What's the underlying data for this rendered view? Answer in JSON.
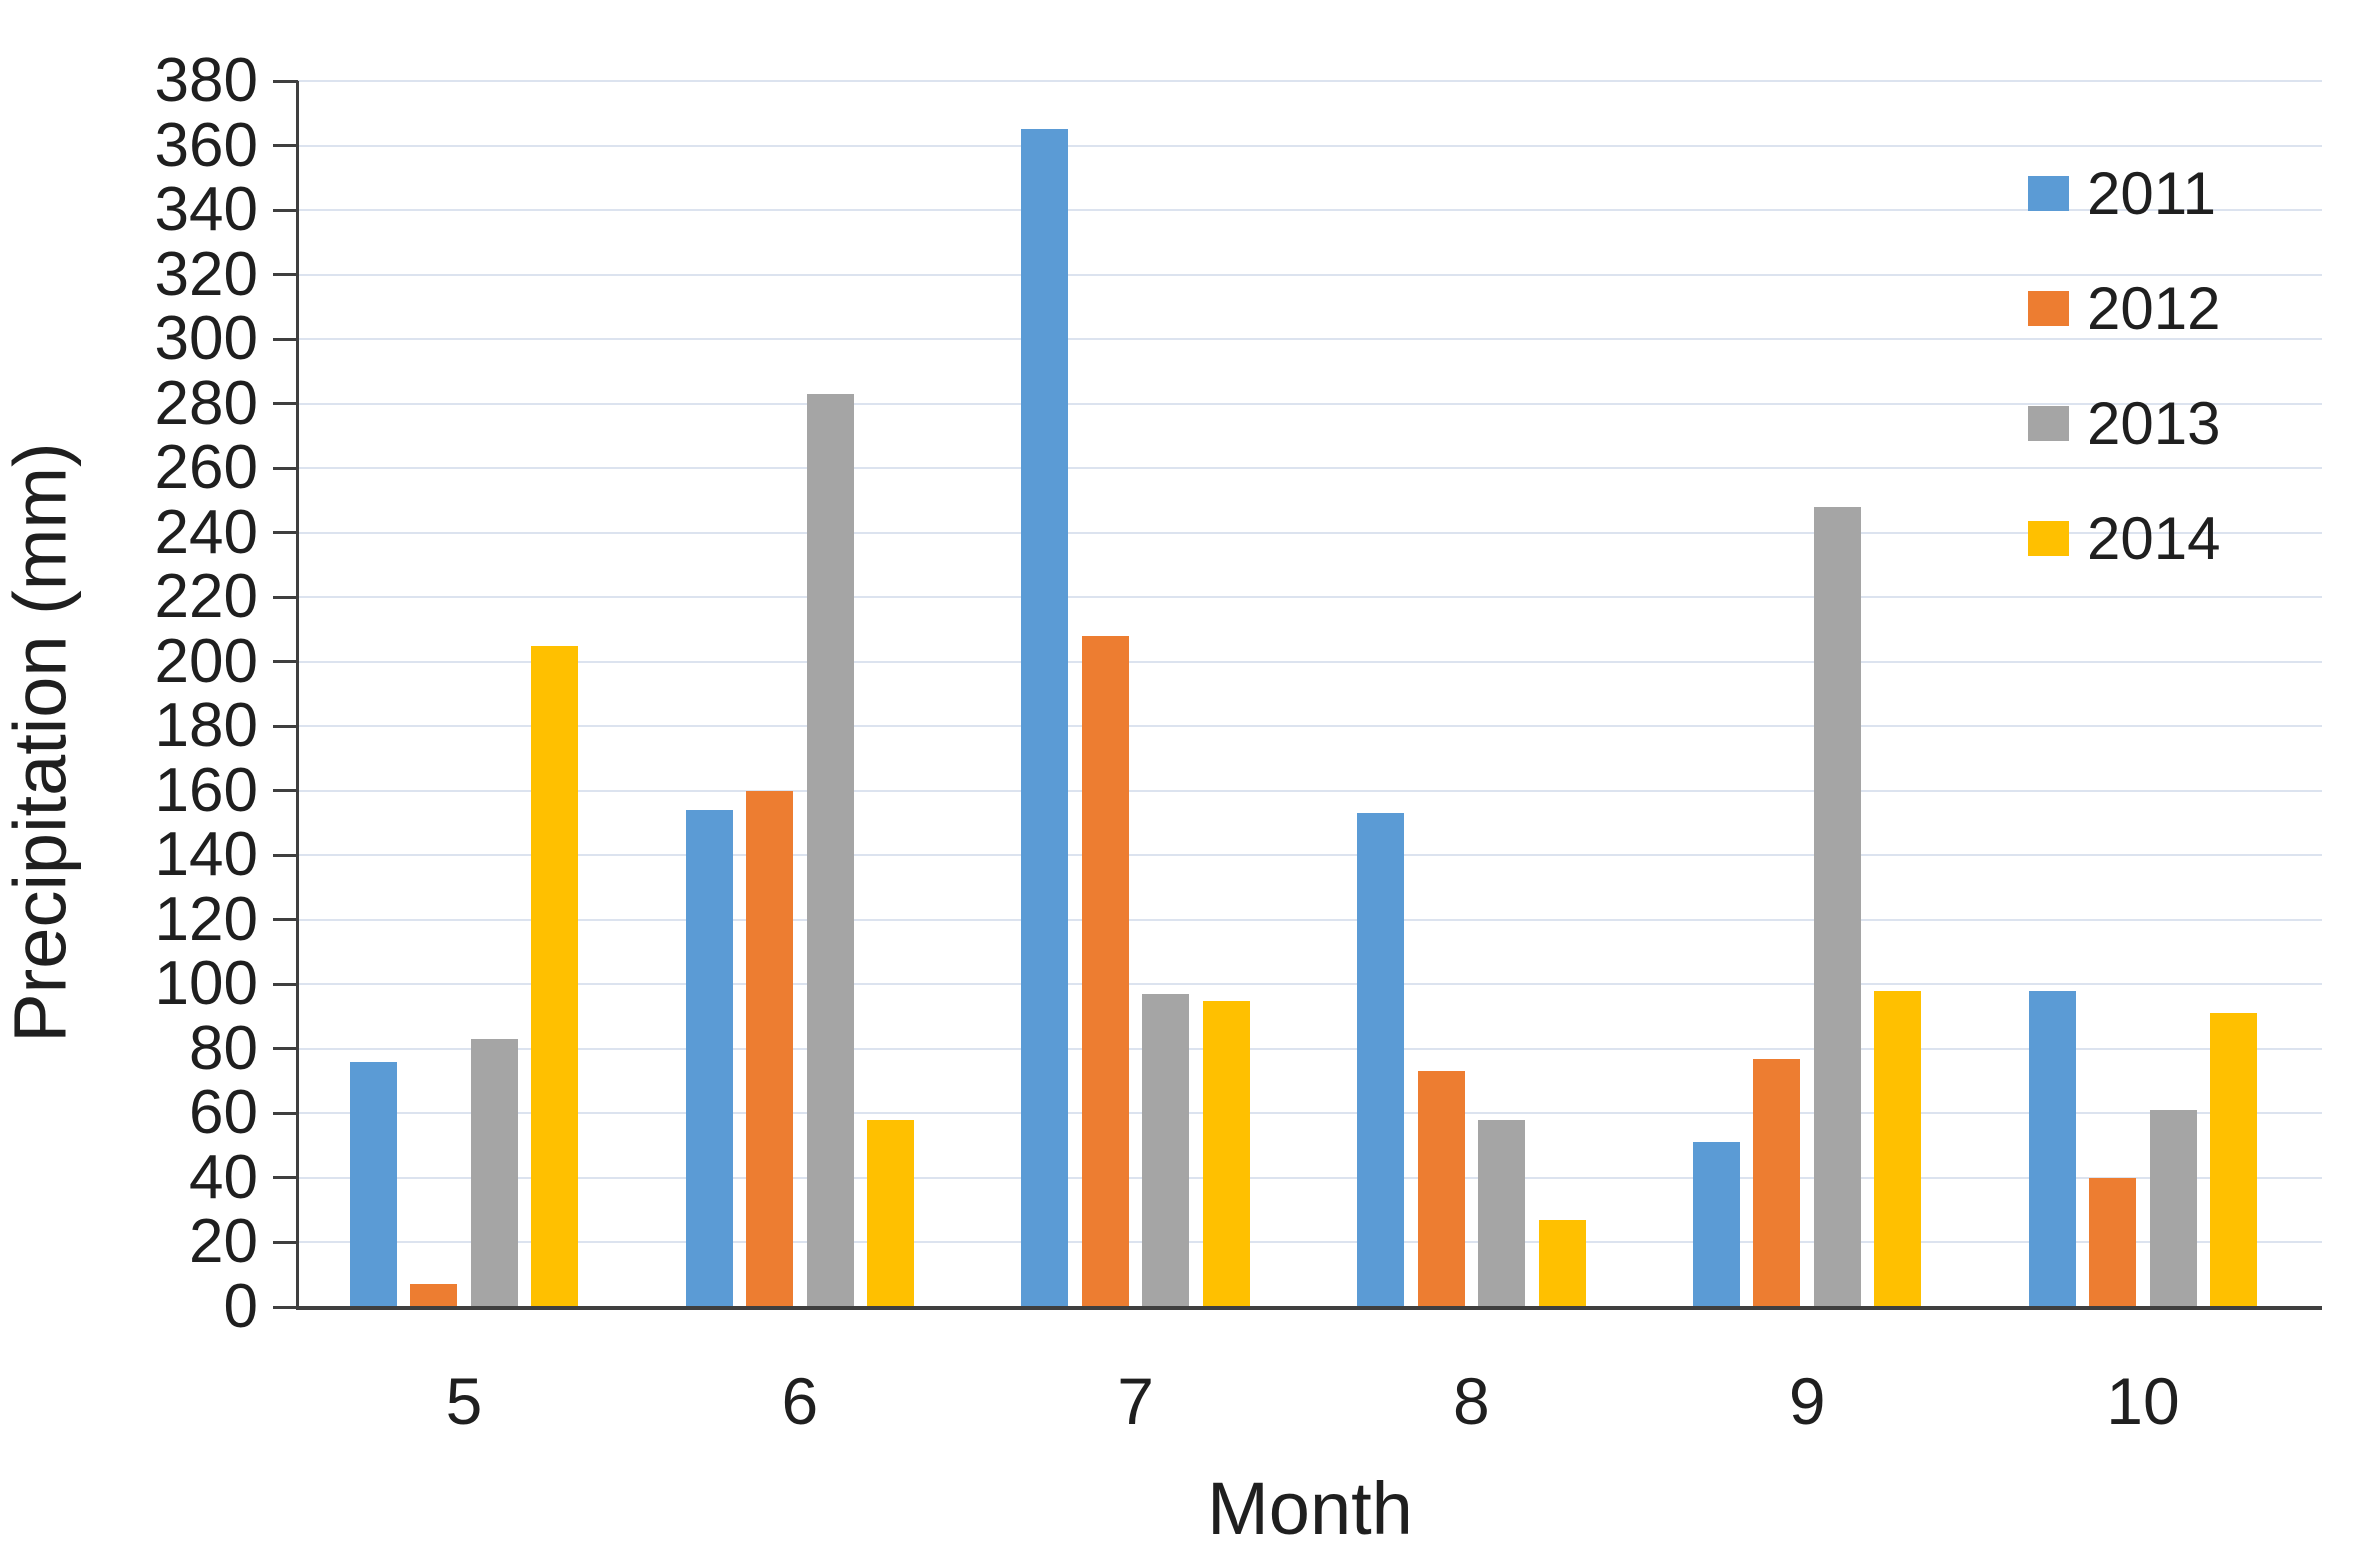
{
  "chart_data": {
    "type": "bar",
    "title": "",
    "categories": [
      "5",
      "6",
      "7",
      "8",
      "9",
      "10"
    ],
    "series": [
      {
        "name": "2011",
        "color": "#5B9BD5",
        "values": [
          76,
          154,
          365,
          153,
          51,
          98
        ]
      },
      {
        "name": "2012",
        "color": "#ED7D31",
        "values": [
          7,
          160,
          208,
          73,
          77,
          40
        ]
      },
      {
        "name": "2013",
        "color": "#A5A5A5",
        "values": [
          83,
          283,
          97,
          58,
          248,
          61
        ]
      },
      {
        "name": "2014",
        "color": "#FFC000",
        "values": [
          205,
          58,
          95,
          27,
          98,
          91
        ]
      }
    ],
    "xlabel": "Month",
    "ylabel": "Precipitation (mm)",
    "ylim": [
      0,
      380
    ],
    "ytick_step": 20,
    "grid": true,
    "legend_position": "top-right",
    "gridline_color": "#dce3ef",
    "axis_color": "#3f3f3f",
    "text_color": "#1f1f1f",
    "background_color": "#ffffff"
  }
}
